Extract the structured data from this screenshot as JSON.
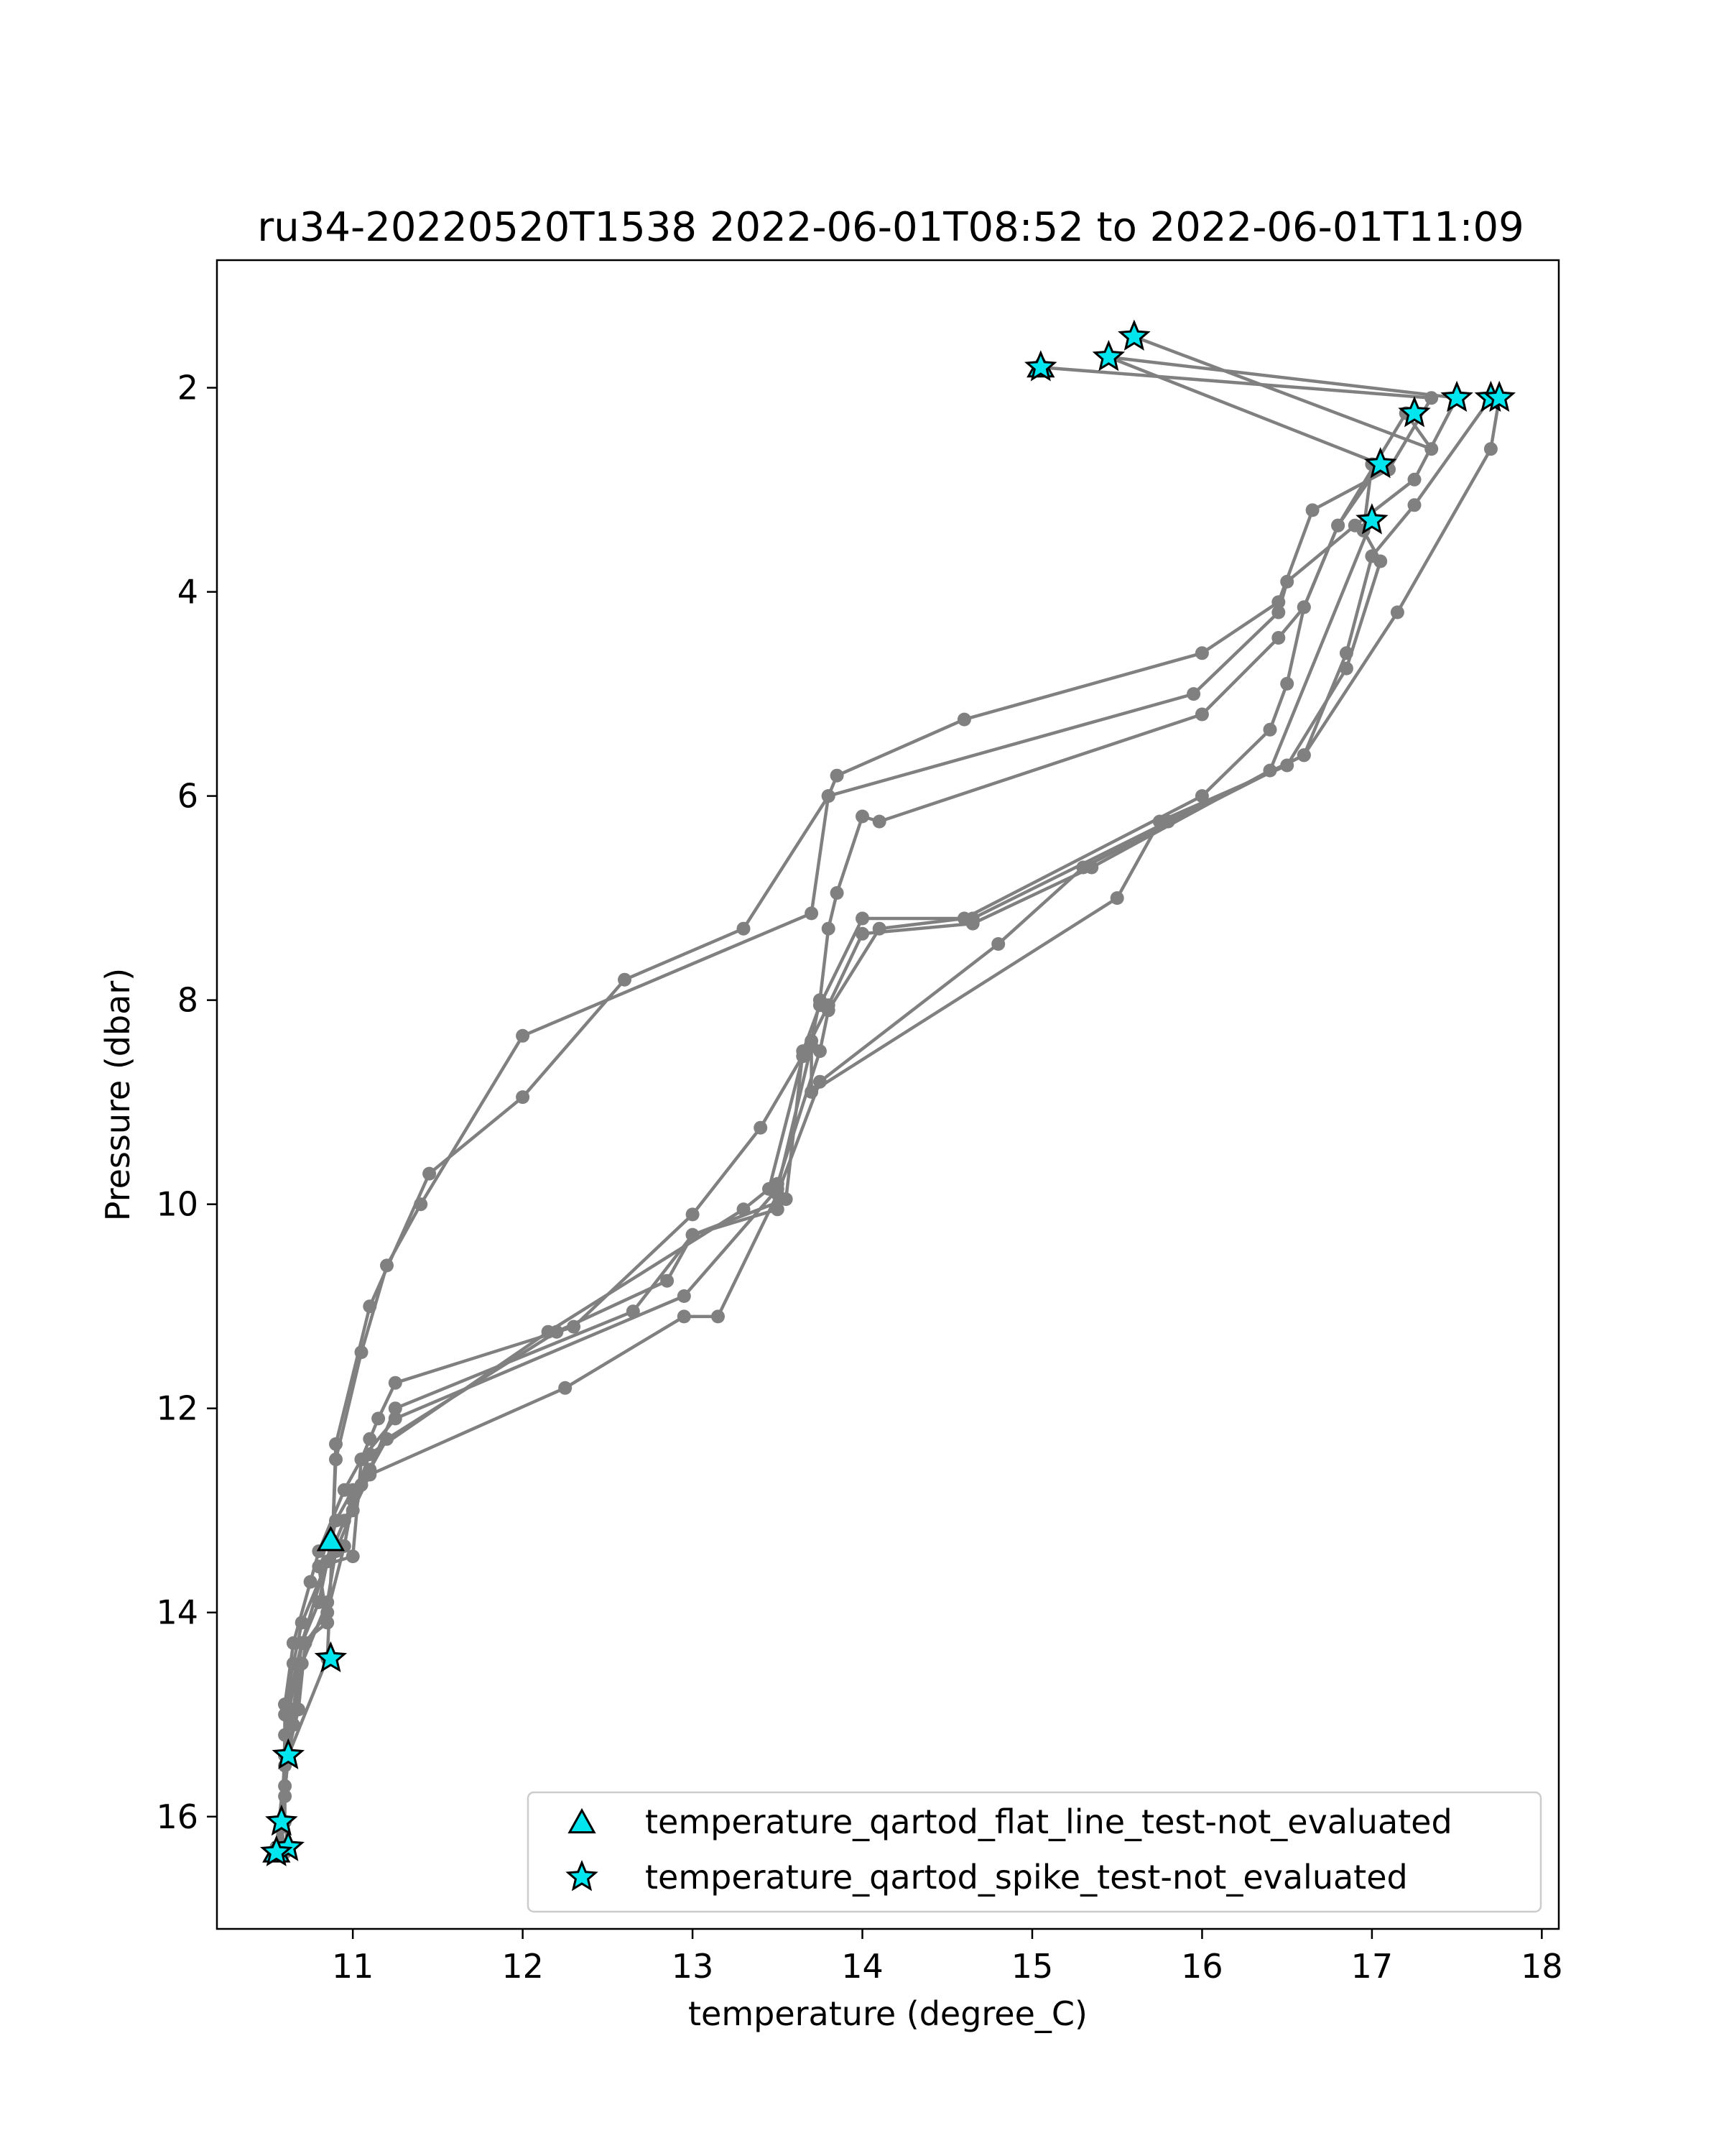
{
  "chart_data": {
    "type": "line",
    "title": "ru34-20220520T1538 2022-06-01T08:52 to 2022-06-01T11:09",
    "xlabel": "temperature (degree_C)",
    "ylabel": "Pressure (dbar)",
    "xlim": [
      10.2,
      18.1
    ],
    "ylim": [
      17.1,
      0.75
    ],
    "y_inverted": true,
    "xticks": [
      11,
      12,
      13,
      14,
      15,
      16,
      17,
      18
    ],
    "yticks": [
      2,
      4,
      6,
      8,
      10,
      12,
      14,
      16
    ],
    "grid": false,
    "legend_position": "lower-right",
    "colors": {
      "line": "#808080",
      "marker_fill": "#00e5ee",
      "marker_edge": "#000000"
    },
    "profiles": [
      [
        [
          15.05,
          1.8
        ],
        [
          17.35,
          2.1
        ],
        [
          17.1,
          2.8
        ],
        [
          16.65,
          3.2
        ],
        [
          16.45,
          4.1
        ],
        [
          16.0,
          4.6
        ],
        [
          14.6,
          5.25
        ],
        [
          13.85,
          5.8
        ],
        [
          13.8,
          6.0
        ],
        [
          13.3,
          7.3
        ],
        [
          12.6,
          7.8
        ],
        [
          12.0,
          8.95
        ],
        [
          11.45,
          9.7
        ],
        [
          11.1,
          11.0
        ],
        [
          10.9,
          12.35
        ],
        [
          10.88,
          13.3
        ],
        [
          10.85,
          14.45
        ],
        [
          10.62,
          15.4
        ],
        [
          10.58,
          16.1
        ],
        [
          10.55,
          16.35
        ]
      ],
      [
        [
          15.45,
          1.7
        ],
        [
          17.5,
          2.1
        ],
        [
          17.25,
          2.9
        ],
        [
          16.9,
          3.35
        ],
        [
          16.5,
          3.9
        ],
        [
          16.45,
          4.2
        ],
        [
          15.95,
          5.0
        ],
        [
          13.8,
          6.0
        ],
        [
          13.7,
          7.15
        ],
        [
          12.0,
          8.35
        ],
        [
          11.4,
          10.0
        ],
        [
          11.2,
          10.6
        ],
        [
          11.05,
          11.45
        ],
        [
          10.9,
          12.5
        ],
        [
          10.88,
          13.3
        ],
        [
          10.7,
          14.3
        ],
        [
          10.6,
          15.0
        ],
        [
          10.6,
          16.05
        ],
        [
          10.62,
          16.3
        ]
      ],
      [
        [
          15.6,
          1.5
        ],
        [
          17.35,
          2.6
        ],
        [
          17.2,
          2.25
        ],
        [
          16.8,
          3.35
        ],
        [
          16.6,
          4.15
        ],
        [
          16.45,
          4.45
        ],
        [
          16.0,
          5.2
        ],
        [
          14.1,
          6.25
        ],
        [
          14.0,
          6.2
        ],
        [
          13.85,
          6.95
        ],
        [
          13.8,
          7.3
        ],
        [
          13.75,
          8.0
        ],
        [
          13.7,
          8.4
        ],
        [
          13.4,
          9.25
        ],
        [
          13.0,
          10.1
        ],
        [
          12.3,
          11.2
        ],
        [
          11.25,
          11.75
        ],
        [
          11.15,
          12.1
        ],
        [
          11.1,
          12.3
        ],
        [
          11.05,
          12.5
        ],
        [
          10.95,
          12.8
        ],
        [
          10.8,
          13.4
        ],
        [
          10.75,
          13.7
        ],
        [
          10.65,
          14.3
        ],
        [
          10.6,
          14.9
        ],
        [
          10.62,
          15.4
        ],
        [
          10.58,
          16.1
        ]
      ],
      [
        [
          15.45,
          1.7
        ],
        [
          17.05,
          2.75
        ],
        [
          16.8,
          3.35
        ],
        [
          16.6,
          4.15
        ],
        [
          16.5,
          4.9
        ],
        [
          16.4,
          5.35
        ],
        [
          16.0,
          6.0
        ],
        [
          14.6,
          7.2
        ],
        [
          14.1,
          7.3
        ],
        [
          13.8,
          8.1
        ],
        [
          13.75,
          8.5
        ],
        [
          13.5,
          9.8
        ],
        [
          13.5,
          10.05
        ],
        [
          13.0,
          10.3
        ],
        [
          12.65,
          11.05
        ],
        [
          11.25,
          12.0
        ],
        [
          11.1,
          12.6
        ],
        [
          11.0,
          12.8
        ],
        [
          10.9,
          13.1
        ],
        [
          10.85,
          13.5
        ],
        [
          10.8,
          13.9
        ],
        [
          10.7,
          14.3
        ],
        [
          10.62,
          15.0
        ],
        [
          10.6,
          15.4
        ],
        [
          10.6,
          15.7
        ]
      ],
      [
        [
          17.7,
          2.1
        ],
        [
          17.25,
          3.15
        ],
        [
          17.0,
          3.65
        ],
        [
          16.85,
          4.6
        ],
        [
          16.6,
          5.6
        ],
        [
          15.8,
          6.25
        ],
        [
          14.65,
          7.2
        ],
        [
          14.0,
          7.2
        ],
        [
          13.75,
          8.05
        ],
        [
          13.65,
          8.5
        ],
        [
          13.55,
          9.95
        ],
        [
          13.0,
          10.3
        ],
        [
          12.85,
          10.75
        ],
        [
          12.2,
          11.25
        ],
        [
          11.2,
          12.3
        ],
        [
          11.05,
          12.75
        ],
        [
          10.95,
          13.1
        ],
        [
          10.85,
          13.5
        ],
        [
          10.7,
          14.1
        ],
        [
          10.65,
          14.5
        ],
        [
          10.6,
          14.9
        ],
        [
          10.6,
          15.4
        ],
        [
          10.6,
          15.8
        ]
      ],
      [
        [
          17.75,
          2.1
        ],
        [
          17.7,
          2.6
        ],
        [
          17.15,
          4.2
        ],
        [
          16.6,
          5.6
        ],
        [
          15.3,
          6.7
        ],
        [
          14.8,
          7.45
        ],
        [
          13.75,
          8.8
        ],
        [
          13.5,
          9.9
        ],
        [
          13.15,
          11.1
        ],
        [
          12.95,
          11.1
        ],
        [
          12.25,
          11.8
        ],
        [
          11.1,
          12.65
        ],
        [
          11.0,
          13.0
        ],
        [
          10.9,
          13.4
        ],
        [
          10.85,
          13.9
        ],
        [
          10.7,
          14.5
        ],
        [
          10.65,
          15.1
        ],
        [
          10.62,
          15.4
        ],
        [
          10.58,
          16.1
        ],
        [
          10.6,
          16.35
        ]
      ],
      [
        [
          17.0,
          2.75
        ],
        [
          16.95,
          3.4
        ],
        [
          17.05,
          3.7
        ],
        [
          16.85,
          4.75
        ],
        [
          16.5,
          5.7
        ],
        [
          15.75,
          6.25
        ],
        [
          15.5,
          7.0
        ],
        [
          13.7,
          8.9
        ],
        [
          13.7,
          8.45
        ],
        [
          13.5,
          9.85
        ],
        [
          12.95,
          10.9
        ],
        [
          11.25,
          12.1
        ],
        [
          11.05,
          12.5
        ],
        [
          11.0,
          13.45
        ],
        [
          10.8,
          13.55
        ],
        [
          10.85,
          14.1
        ],
        [
          10.7,
          14.3
        ],
        [
          10.65,
          14.95
        ],
        [
          10.6,
          15.2
        ],
        [
          10.58,
          16.35
        ]
      ],
      [
        [
          17.0,
          3.3
        ],
        [
          16.4,
          5.75
        ],
        [
          15.35,
          6.7
        ],
        [
          14.65,
          7.25
        ],
        [
          14.0,
          7.35
        ],
        [
          13.8,
          8.05
        ],
        [
          13.65,
          8.55
        ],
        [
          13.45,
          9.85
        ],
        [
          13.3,
          10.05
        ],
        [
          12.15,
          11.25
        ],
        [
          11.1,
          12.45
        ],
        [
          11.0,
          12.9
        ],
        [
          10.95,
          13.35
        ],
        [
          10.85,
          14.0
        ],
        [
          10.72,
          14.3
        ],
        [
          10.68,
          14.95
        ],
        [
          10.6,
          15.5
        ],
        [
          10.55,
          16.3
        ]
      ]
    ],
    "flat_line_test_not_evaluated": [
      [
        15.05,
        1.8
      ],
      [
        10.87,
        13.3
      ],
      [
        10.55,
        16.35
      ]
    ],
    "spike_test_not_evaluated": [
      [
        15.05,
        1.8
      ],
      [
        15.45,
        1.7
      ],
      [
        15.6,
        1.5
      ],
      [
        17.5,
        2.1
      ],
      [
        17.7,
        2.1
      ],
      [
        17.75,
        2.1
      ],
      [
        17.25,
        2.25
      ],
      [
        17.05,
        2.75
      ],
      [
        17.0,
        3.3
      ],
      [
        10.87,
        14.45
      ],
      [
        10.62,
        15.4
      ],
      [
        10.58,
        16.05
      ],
      [
        10.62,
        16.3
      ],
      [
        10.55,
        16.35
      ]
    ],
    "legend": [
      {
        "marker": "triangle",
        "label": "temperature_qartod_flat_line_test-not_evaluated"
      },
      {
        "marker": "star",
        "label": "temperature_qartod_spike_test-not_evaluated"
      }
    ]
  }
}
